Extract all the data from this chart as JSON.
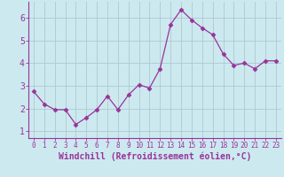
{
  "x": [
    0,
    1,
    2,
    3,
    4,
    5,
    6,
    7,
    8,
    9,
    10,
    11,
    12,
    13,
    14,
    15,
    16,
    17,
    18,
    19,
    20,
    21,
    22,
    23
  ],
  "y": [
    2.75,
    2.2,
    1.95,
    1.95,
    1.3,
    1.6,
    1.95,
    2.55,
    1.95,
    2.6,
    3.05,
    2.9,
    3.75,
    5.7,
    6.35,
    5.9,
    5.55,
    5.25,
    4.4,
    3.9,
    4.0,
    3.75,
    4.1,
    4.1
  ],
  "line_color": "#993399",
  "marker": "D",
  "marker_size": 2.5,
  "bg_color": "#cce9f0",
  "grid_color": "#b0c8d0",
  "xlabel": "Windchill (Refroidissement éolien,°C)",
  "xlabel_color": "#993399",
  "tick_color": "#993399",
  "spine_color": "#993399",
  "ylim": [
    0.7,
    6.7
  ],
  "xlim": [
    -0.5,
    23.5
  ],
  "yticks": [
    1,
    2,
    3,
    4,
    5,
    6
  ],
  "xticks": [
    0,
    1,
    2,
    3,
    4,
    5,
    6,
    7,
    8,
    9,
    10,
    11,
    12,
    13,
    14,
    15,
    16,
    17,
    18,
    19,
    20,
    21,
    22,
    23
  ],
  "xtick_labels": [
    "0",
    "1",
    "2",
    "3",
    "4",
    "5",
    "6",
    "7",
    "8",
    "9",
    "10",
    "11",
    "12",
    "13",
    "14",
    "15",
    "16",
    "17",
    "18",
    "19",
    "20",
    "21",
    "22",
    "23"
  ],
  "tick_fontsize": 5.5,
  "ytick_fontsize": 7,
  "xlabel_fontsize": 7
}
